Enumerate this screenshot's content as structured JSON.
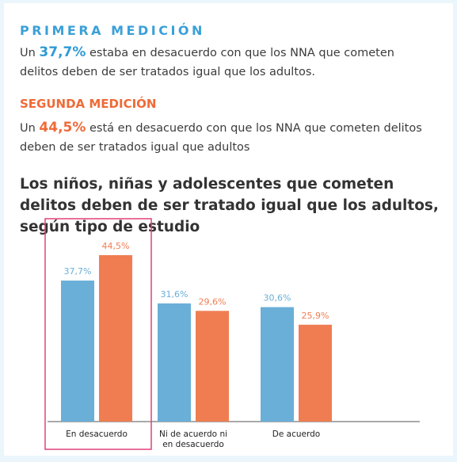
{
  "sections": [
    {
      "title": "PRIMERA MEDICIÓN",
      "before": "Un ",
      "highlight": "37,7%",
      "after": " estaba en desacuerdo con que los NNA que cometen delitos deben de ser tratados igual que los adultos."
    },
    {
      "title": "SEGUNDA MEDICIÓN",
      "before": "Un ",
      "highlight": "44,5%",
      "after": " está en desacuerdo con que los NNA que cometen delitos deben de ser tratados igual que adultos"
    }
  ],
  "chart_data": {
    "type": "bar",
    "title": "Los niños, niñas y adolescentes que cometen delitos deben de ser tratado igual que los adultos, según tipo de estudio",
    "categories": [
      "En desacuerdo",
      "Ni de acuerdo ni en desacuerdo",
      "De acuerdo"
    ],
    "series": [
      {
        "color": "#6aafd8",
        "values": [
          37.7,
          31.6,
          30.6
        ],
        "value_labels": [
          "37,7%",
          "31,6%",
          "30,6%"
        ]
      },
      {
        "color": "#f07d52",
        "values": [
          44.5,
          29.6,
          25.9
        ],
        "value_labels": [
          "44,5%",
          "29,6%",
          "25,9%"
        ]
      }
    ]
  }
}
